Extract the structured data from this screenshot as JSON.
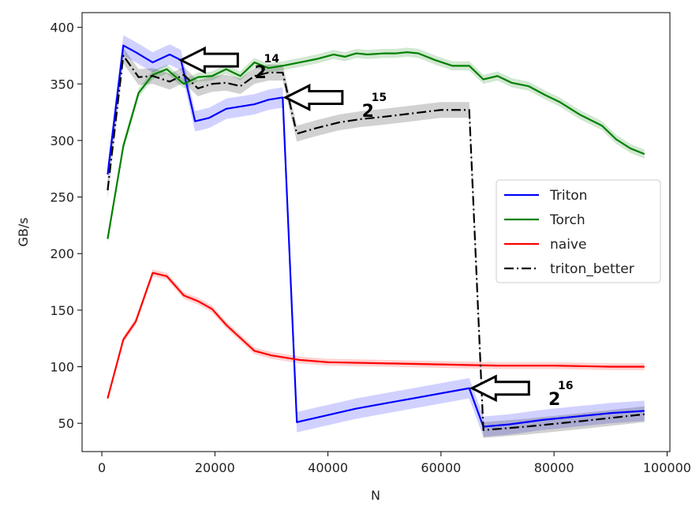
{
  "chart_data": {
    "type": "line",
    "title": "",
    "xlabel": "N",
    "ylabel": "GB/s",
    "xlim": [
      -3500,
      100500
    ],
    "ylim": [
      25,
      413
    ],
    "xticks": [
      0,
      20000,
      40000,
      60000,
      80000,
      100000
    ],
    "xtick_labels": [
      "0",
      "20000",
      "40000",
      "60000",
      "80000",
      "100000"
    ],
    "yticks": [
      50,
      100,
      150,
      200,
      250,
      300,
      350,
      400
    ],
    "ytick_labels": [
      "50",
      "100",
      "150",
      "200",
      "250",
      "300",
      "350",
      "400"
    ],
    "grid": false,
    "legend_position": "center-right",
    "series": [
      {
        "name": "Triton",
        "color": "#0000ff",
        "style": "solid",
        "x": [
          1024,
          3800,
          6000,
          9000,
          12000,
          14000,
          16500,
          19000,
          22000,
          24500,
          27000,
          29500,
          32000,
          34500,
          45000,
          55000,
          65000,
          67500,
          72000,
          78000,
          84000,
          90000,
          96000
        ],
        "y": [
          270,
          384,
          378,
          369,
          376,
          371,
          317,
          320,
          328,
          330,
          332,
          336,
          338,
          51,
          63,
          72,
          81,
          47,
          49,
          53,
          56,
          59,
          61
        ],
        "band": 9
      },
      {
        "name": "Torch",
        "color": "#008000",
        "style": "solid",
        "x": [
          1024,
          3800,
          6500,
          9000,
          11500,
          14500,
          17000,
          19500,
          22000,
          24500,
          27000,
          29500,
          32000,
          35000,
          38000,
          41000,
          43000,
          45000,
          47000,
          50000,
          52000,
          54000,
          56000,
          59000,
          62000,
          65000,
          67500,
          70000,
          72500,
          75500,
          78500,
          81000,
          84500,
          88500,
          91000,
          93500,
          96000
        ],
        "y": [
          213,
          295,
          342,
          358,
          363,
          350,
          356,
          357,
          363,
          357,
          369,
          364,
          366,
          369,
          372,
          376,
          374,
          377,
          376,
          377,
          377,
          378,
          377,
          371,
          366,
          366,
          354,
          357,
          351,
          348,
          340,
          334,
          323,
          313,
          301,
          293,
          288
        ],
        "band": 4
      },
      {
        "name": "naive",
        "color": "#ff0000",
        "style": "solid",
        "x": [
          1024,
          3800,
          6000,
          9000,
          11500,
          14500,
          17000,
          19500,
          22000,
          27000,
          30000,
          35000,
          40000,
          50000,
          60000,
          70000,
          80000,
          90000,
          96000
        ],
        "y": [
          72,
          124,
          140,
          183,
          180,
          163,
          158,
          151,
          137,
          114,
          110,
          106,
          104,
          103,
          102,
          101,
          101,
          100,
          100
        ],
        "band": 3
      },
      {
        "name": "triton_better",
        "color": "#000000",
        "style": "dashdot",
        "x": [
          1024,
          3800,
          6500,
          9000,
          12000,
          14500,
          17000,
          19500,
          22000,
          24500,
          27000,
          29500,
          32000,
          34500,
          38000,
          42000,
          46000,
          50000,
          55000,
          60000,
          65000,
          67500,
          75000,
          85000,
          96000
        ],
        "y": [
          256,
          375,
          356,
          357,
          352,
          358,
          346,
          350,
          351,
          348,
          357,
          360,
          360,
          306,
          311,
          316,
          319,
          321,
          324,
          327,
          327,
          44,
          47,
          52,
          58
        ],
        "band": 7
      }
    ],
    "annotations": [
      {
        "label": "2",
        "exponent": "14",
        "target_x": 14000,
        "target_y": 371,
        "text_x": 27000,
        "text_y": 362
      },
      {
        "label": "2",
        "exponent": "15",
        "target_x": 32500,
        "target_y": 338,
        "text_x": 46000,
        "text_y": 328
      },
      {
        "label": "2",
        "exponent": "16",
        "target_x": 65500,
        "target_y": 81,
        "text_x": 79000,
        "text_y": 73
      }
    ]
  }
}
